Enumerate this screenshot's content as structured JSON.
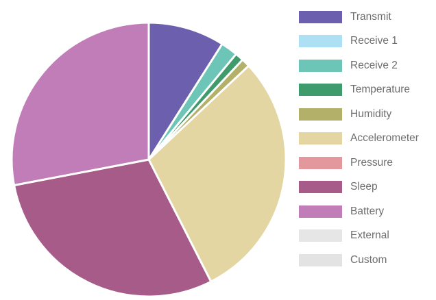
{
  "chart_data": {
    "type": "pie",
    "title": "",
    "start_angle_deg": 0,
    "direction": "clockwise",
    "legend_position": "right",
    "slices": [
      {
        "label": "Transmit",
        "value": 9.0,
        "color": "#6c60ae"
      },
      {
        "label": "Receive 1",
        "value": 0.0,
        "color": "#aee0f3"
      },
      {
        "label": "Receive 2",
        "value": 2.0,
        "color": "#6cc5b6"
      },
      {
        "label": "Temperature",
        "value": 1.0,
        "color": "#3f9a6c"
      },
      {
        "label": "Humidity",
        "value": 1.0,
        "color": "#b3b06a"
      },
      {
        "label": "Accelerometer",
        "value": 29.5,
        "color": "#e3d6a2"
      },
      {
        "label": "Pressure",
        "value": 0.0,
        "color": "#e2989c"
      },
      {
        "label": "Sleep",
        "value": 29.5,
        "color": "#a65b88"
      },
      {
        "label": "Battery",
        "value": 28.0,
        "color": "#c17db8"
      },
      {
        "label": "External",
        "value": 0.0,
        "color": "#e6e6e6"
      },
      {
        "label": "Custom",
        "value": 0.0,
        "color": "#e3e3e3"
      }
    ]
  }
}
